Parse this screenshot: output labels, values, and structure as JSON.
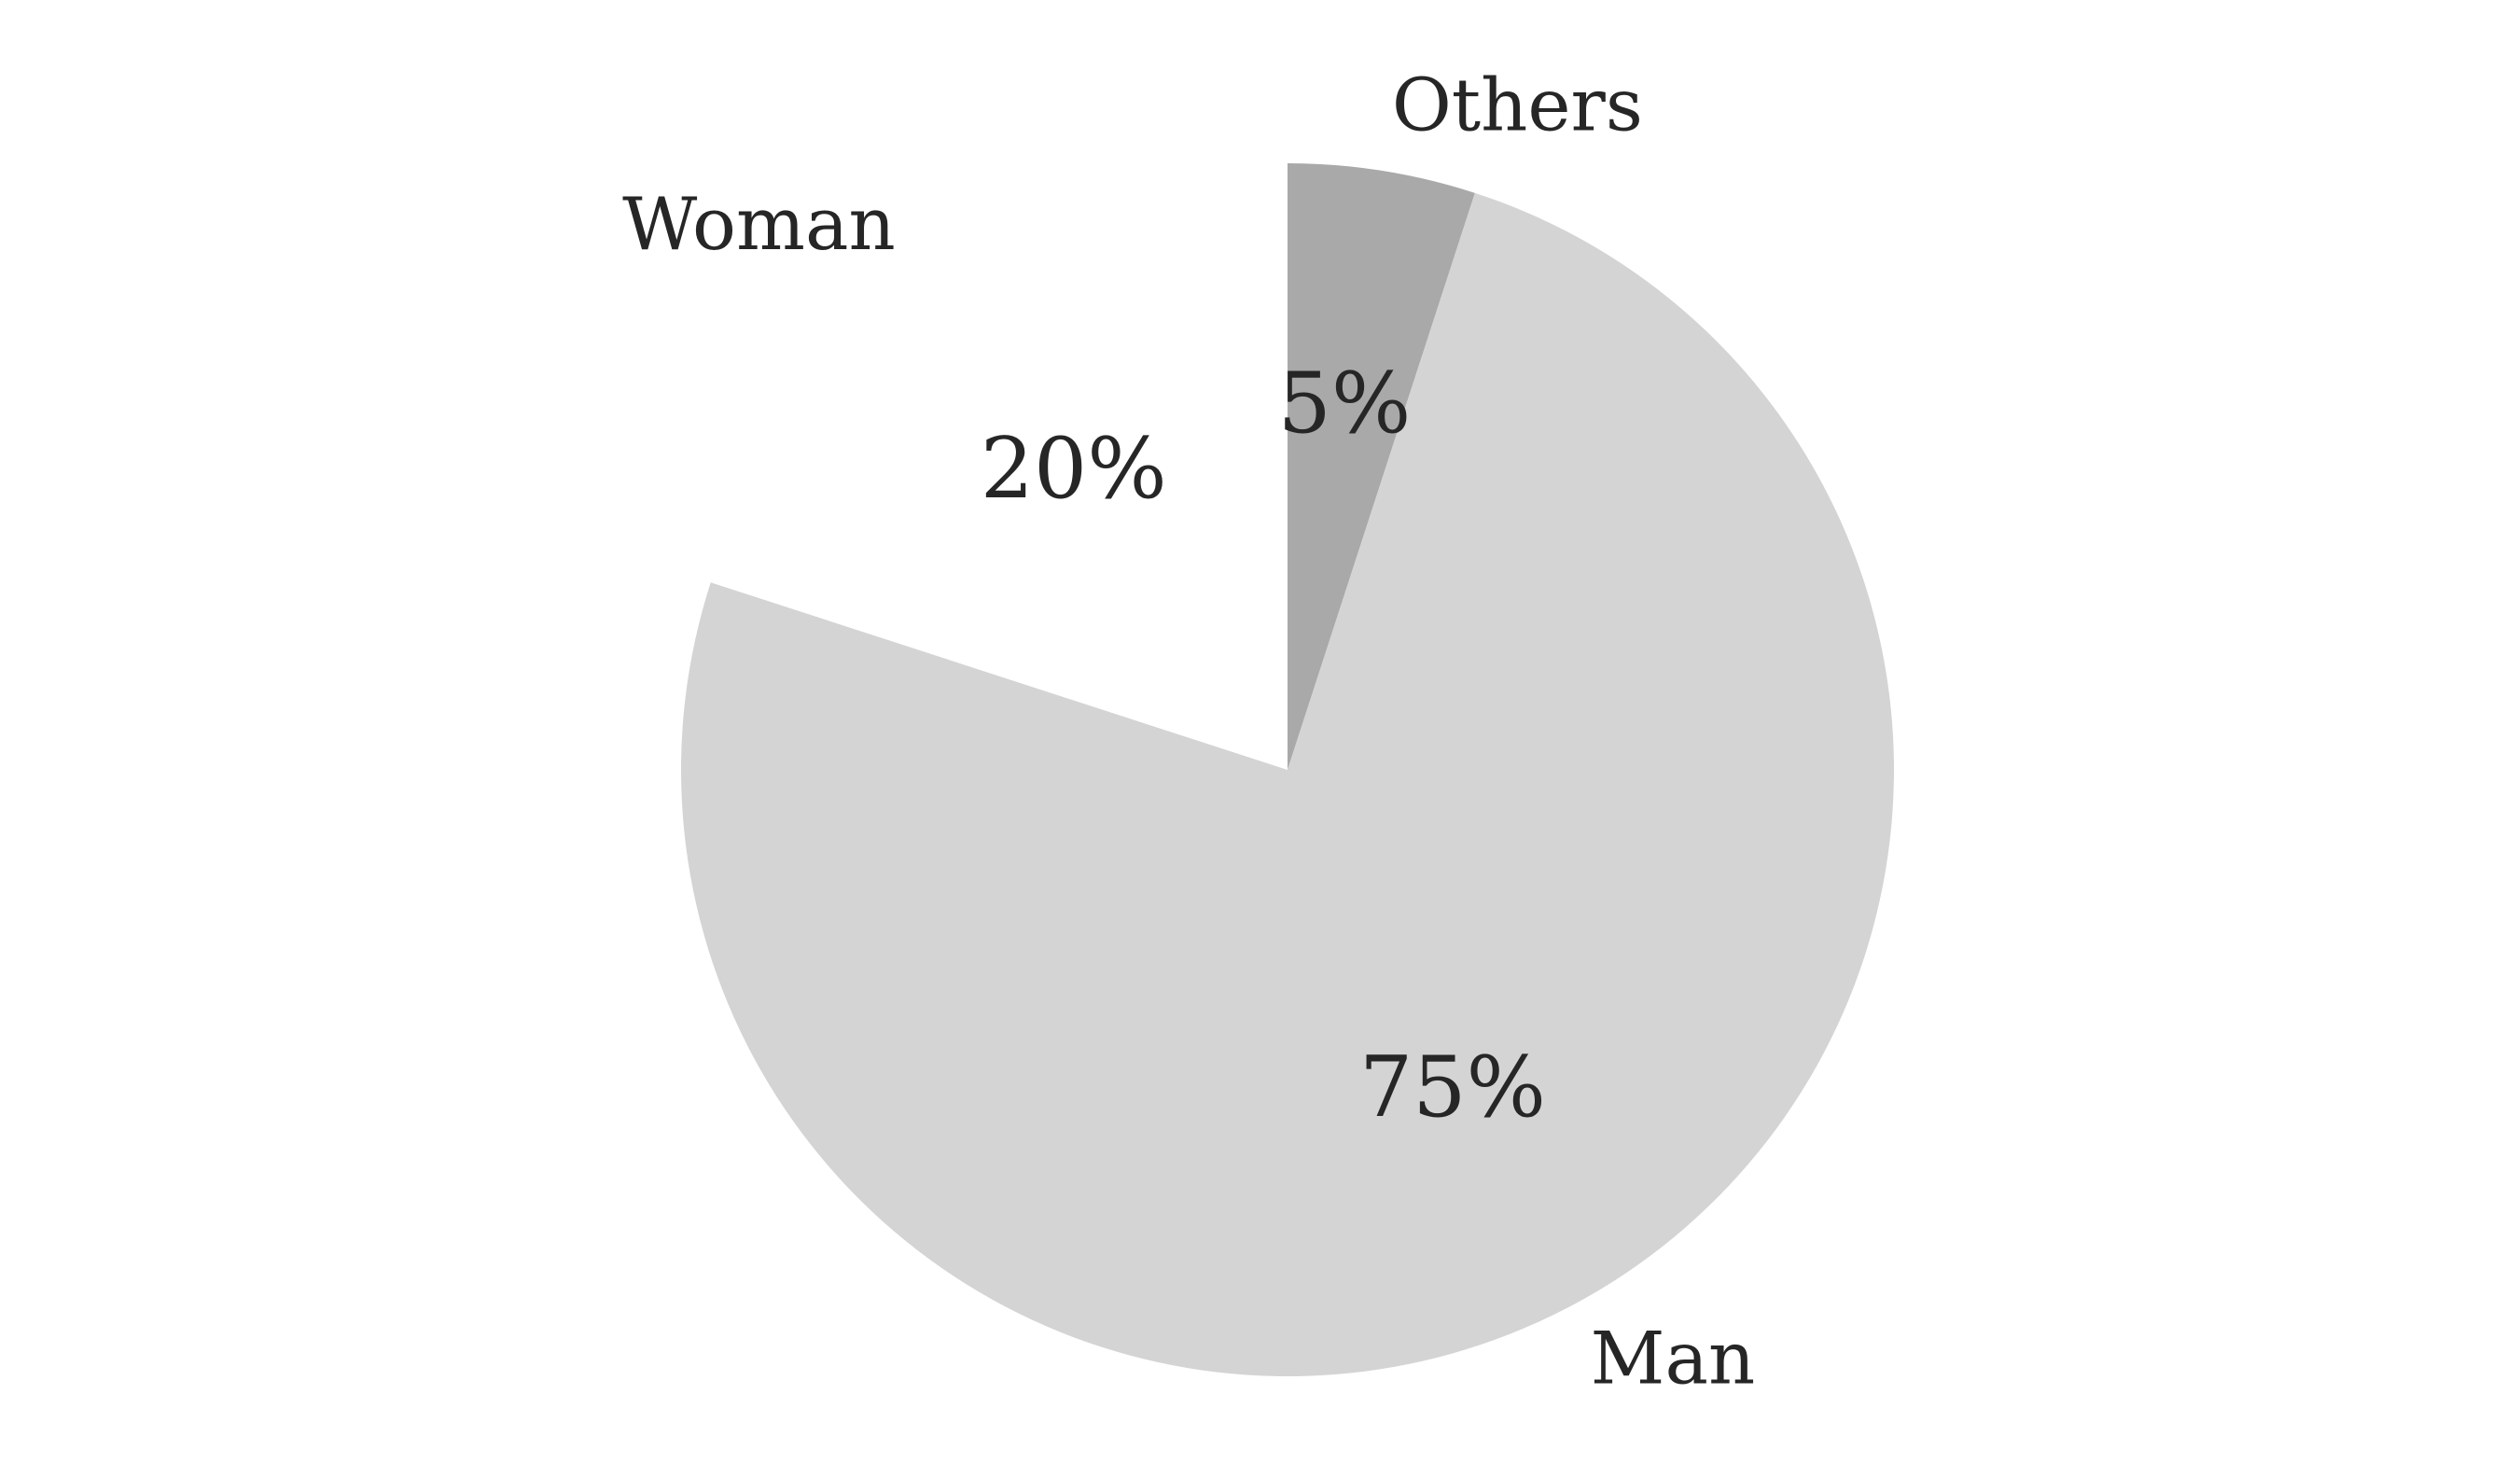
{
  "chart_data": {
    "type": "pie",
    "slices": [
      {
        "label": "Others",
        "value": 5,
        "display": "5%",
        "color": "#a9a9a9",
        "exploded": false
      },
      {
        "label": "Man",
        "value": 75,
        "display": "75%",
        "color": "#d4d4d4",
        "exploded": false
      },
      {
        "label": "Woman",
        "value": 20,
        "display": "20%",
        "color": "#ffffff",
        "exploded": true
      }
    ],
    "start": "top",
    "direction": "clockwise",
    "legend": "none"
  }
}
